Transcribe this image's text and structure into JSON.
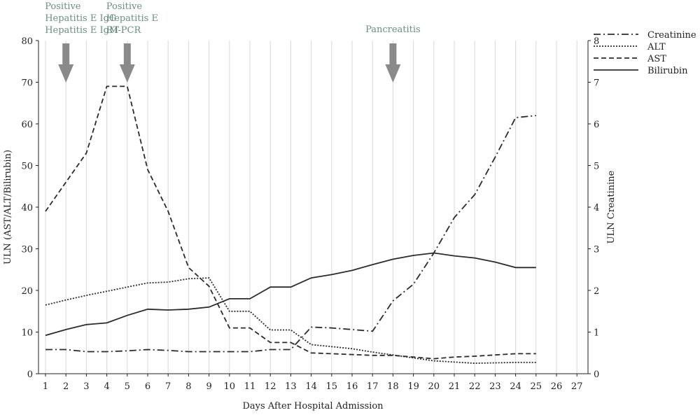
{
  "chart_data": {
    "type": "line",
    "xlabel": "Days After Hospital Admission",
    "ylabel": "ULN (AST/ALT/Bilirubin)",
    "y2label": "ULN  Creatinine",
    "xlim": [
      1,
      27
    ],
    "ylim": [
      0,
      80
    ],
    "y2lim": [
      0,
      8
    ],
    "x_ticks": [
      1,
      2,
      3,
      4,
      5,
      6,
      7,
      8,
      9,
      10,
      11,
      12,
      13,
      14,
      15,
      16,
      17,
      18,
      19,
      20,
      21,
      22,
      23,
      24,
      25,
      26,
      27
    ],
    "y_ticks": [
      0,
      10,
      20,
      30,
      40,
      50,
      60,
      70,
      80
    ],
    "y2_ticks": [
      0,
      1,
      2,
      3,
      4,
      5,
      6,
      7,
      8
    ],
    "grid": "vertical",
    "legend_position": "top-right",
    "series": [
      {
        "name": "Creatinine",
        "axis": "right",
        "style": "dashdot",
        "points": [
          [
            1,
            0.58
          ],
          [
            2,
            0.58
          ],
          [
            3,
            0.53
          ],
          [
            4,
            0.53
          ],
          [
            5,
            0.55
          ],
          [
            6,
            0.58
          ],
          [
            7,
            0.56
          ],
          [
            8,
            0.53
          ],
          [
            9,
            0.53
          ],
          [
            10,
            0.53
          ],
          [
            11,
            0.53
          ],
          [
            12,
            0.58
          ],
          [
            13,
            0.58
          ],
          [
            14,
            1.12
          ],
          [
            15,
            1.1
          ],
          [
            16,
            1.06
          ],
          [
            17,
            1.02
          ],
          [
            18,
            1.75
          ],
          [
            19,
            2.15
          ],
          [
            20,
            2.9
          ],
          [
            21,
            3.75
          ],
          [
            22,
            4.3
          ],
          [
            23,
            5.2
          ],
          [
            24,
            6.15
          ],
          [
            25,
            6.2
          ]
        ]
      },
      {
        "name": "ALT",
        "axis": "left",
        "style": "dotted",
        "points": [
          [
            1,
            16.5
          ],
          [
            2,
            17.7
          ],
          [
            3,
            18.8
          ],
          [
            4,
            19.8
          ],
          [
            5,
            20.8
          ],
          [
            6,
            21.8
          ],
          [
            7,
            22
          ],
          [
            8,
            22.8
          ],
          [
            9,
            23
          ],
          [
            10,
            15
          ],
          [
            11,
            15
          ],
          [
            12,
            10.5
          ],
          [
            13,
            10.5
          ],
          [
            14,
            7
          ],
          [
            15,
            6.5
          ],
          [
            16,
            6
          ],
          [
            17,
            5.2
          ],
          [
            18,
            4.5
          ],
          [
            19,
            3.8
          ],
          [
            20,
            3.1
          ],
          [
            21,
            2.8
          ],
          [
            22,
            2.5
          ],
          [
            23,
            2.6
          ],
          [
            24,
            2.7
          ],
          [
            25,
            2.7
          ]
        ]
      },
      {
        "name": "AST",
        "axis": "left",
        "style": "dashed",
        "points": [
          [
            1,
            39
          ],
          [
            2,
            46
          ],
          [
            3,
            53
          ],
          [
            4,
            69
          ],
          [
            5,
            69
          ],
          [
            6,
            49
          ],
          [
            7,
            39
          ],
          [
            8,
            25.5
          ],
          [
            9,
            21
          ],
          [
            10,
            11
          ],
          [
            11,
            11
          ],
          [
            12,
            7.5
          ],
          [
            13,
            7.5
          ],
          [
            14,
            5
          ],
          [
            15,
            4.8
          ],
          [
            16,
            4.6
          ],
          [
            17,
            4.4
          ],
          [
            18,
            4.4
          ],
          [
            19,
            4
          ],
          [
            20,
            3.6
          ],
          [
            21,
            4
          ],
          [
            22,
            4.2
          ],
          [
            23,
            4.5
          ],
          [
            24,
            4.8
          ],
          [
            25,
            4.8
          ]
        ]
      },
      {
        "name": "Bilirubin",
        "axis": "left",
        "style": "solid",
        "points": [
          [
            1,
            9.2
          ],
          [
            2,
            10.6
          ],
          [
            3,
            11.8
          ],
          [
            4,
            12.2
          ],
          [
            5,
            14
          ],
          [
            6,
            15.5
          ],
          [
            7,
            15.3
          ],
          [
            8,
            15.5
          ],
          [
            9,
            16
          ],
          [
            10,
            18
          ],
          [
            11,
            18
          ],
          [
            12,
            20.8
          ],
          [
            13,
            20.8
          ],
          [
            14,
            23
          ],
          [
            15,
            23.8
          ],
          [
            16,
            24.8
          ],
          [
            17,
            26.2
          ],
          [
            18,
            27.5
          ],
          [
            19,
            28.4
          ],
          [
            20,
            29
          ],
          [
            21,
            28.3
          ],
          [
            22,
            27.8
          ],
          [
            23,
            26.8
          ],
          [
            24,
            25.5
          ],
          [
            25,
            25.5
          ]
        ]
      }
    ],
    "annotations": [
      {
        "x": 2,
        "lines": [
          "Positive",
          "Hepatitis E IgG",
          "Hepatitis E IgM"
        ]
      },
      {
        "x": 5,
        "lines": [
          "Positive",
          "Hepatitis E",
          "RT-PCR"
        ]
      },
      {
        "x": 18,
        "lines": [
          "Pancreatitis"
        ]
      }
    ],
    "colors": {
      "line": "#2b2b2b",
      "arrow": "#8a8a8a",
      "annotation": "#6b8e7f",
      "grid": "#d8d8d8"
    }
  }
}
